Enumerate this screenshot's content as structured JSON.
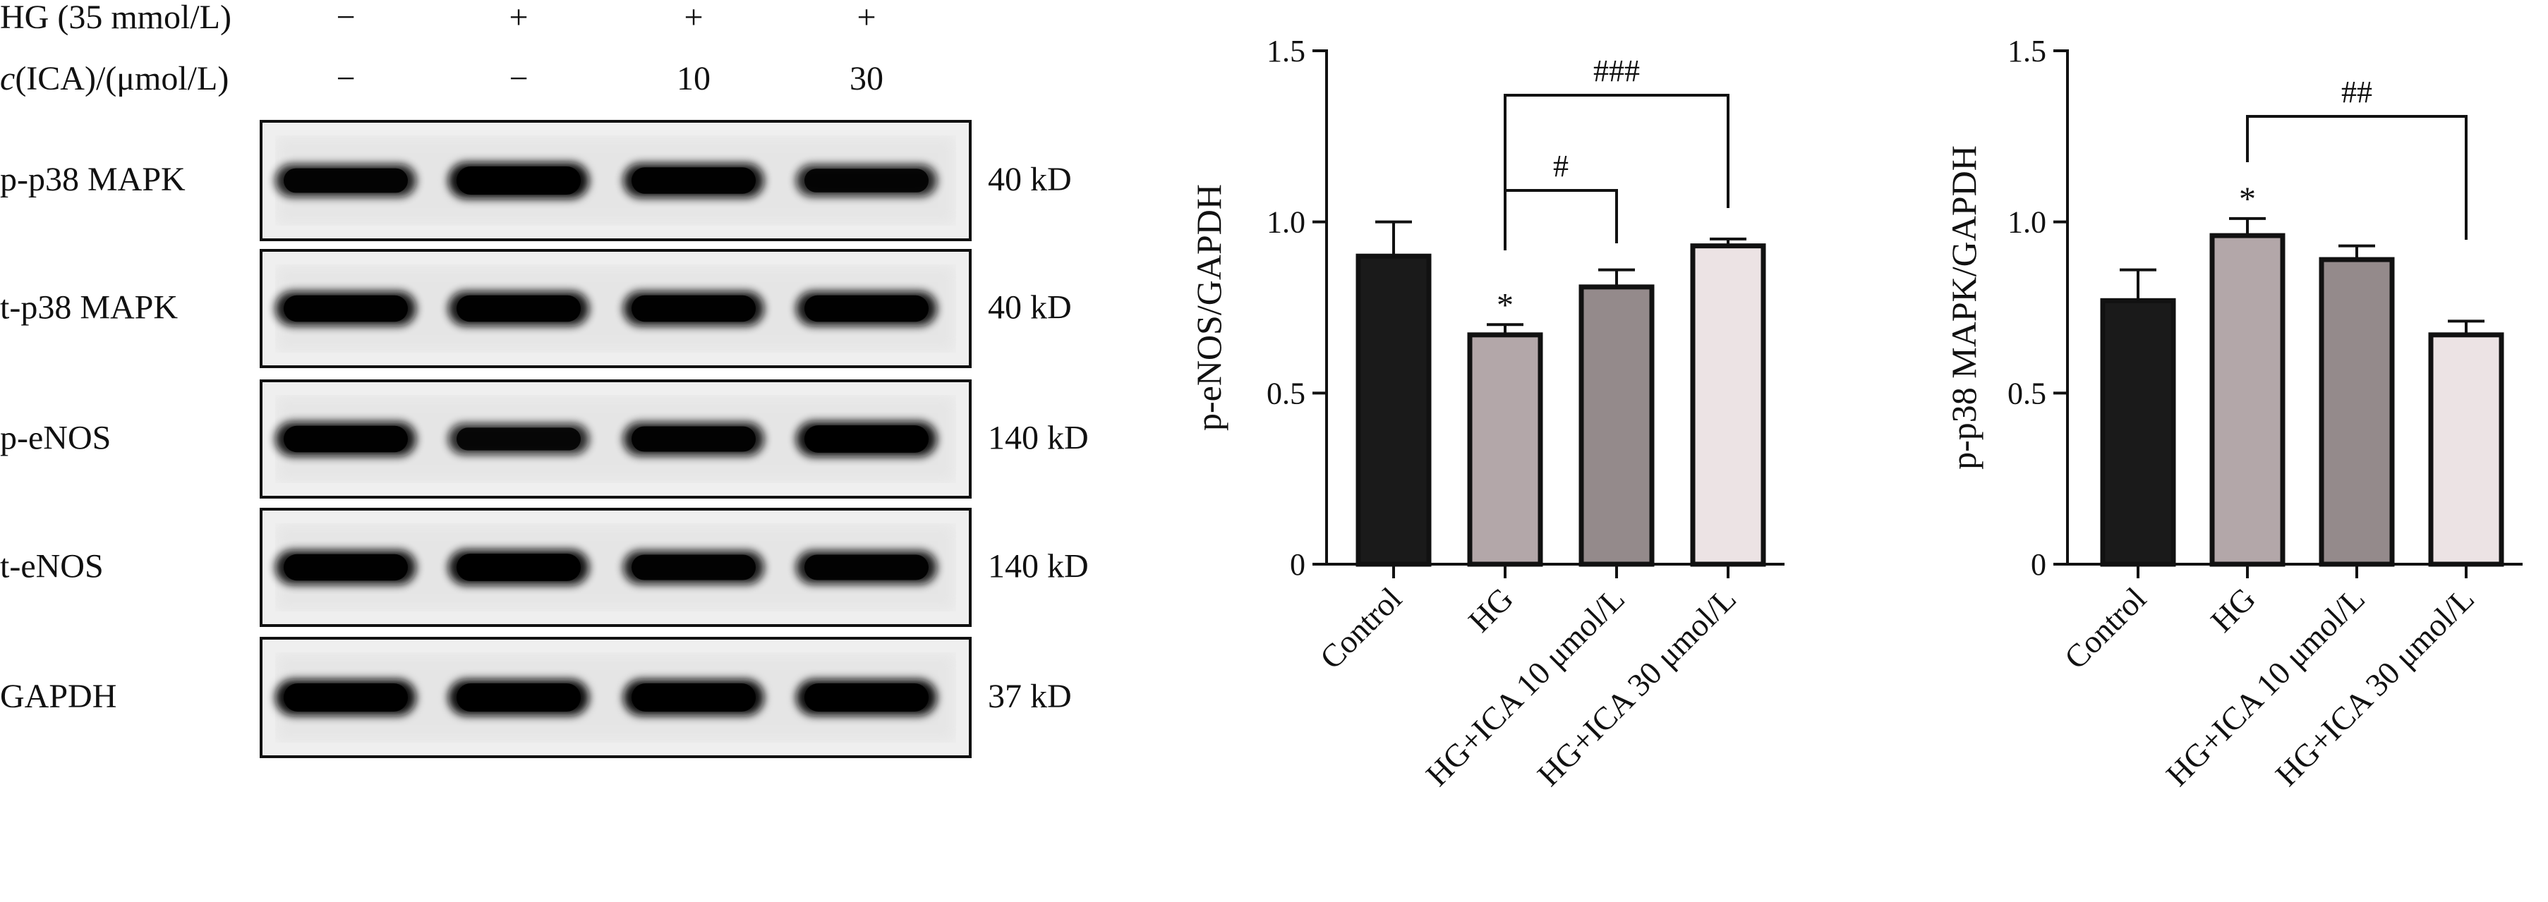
{
  "conditions": {
    "rows": [
      {
        "label": "HG (35 mmol/L)",
        "italic_prefix": "",
        "values": [
          "−",
          "+",
          "+",
          "+"
        ]
      },
      {
        "label": "(ICA)/(μmol/L)",
        "italic_prefix": "c",
        "values": [
          "−",
          "−",
          "10",
          "30"
        ]
      }
    ]
  },
  "blots": [
    {
      "label": "p-p38 MAPK",
      "size": "40 kD",
      "band_intensity": [
        0.8,
        1.0,
        0.9,
        0.75
      ]
    },
    {
      "label": "t-p38 MAPK",
      "size": "40 kD",
      "band_intensity": [
        0.9,
        0.9,
        0.9,
        0.9
      ]
    },
    {
      "label": "p-eNOS",
      "size": "140 kD",
      "band_intensity": [
        0.9,
        0.7,
        0.85,
        0.95
      ]
    },
    {
      "label": "t-eNOS",
      "size": "140 kD",
      "band_intensity": [
        0.9,
        0.95,
        0.85,
        0.85
      ]
    },
    {
      "label": "GAPDH",
      "size": "37 kD",
      "band_intensity": [
        1.0,
        1.0,
        1.0,
        1.0
      ]
    }
  ],
  "colors": {
    "control": "#1a1a1a",
    "hg": "#b3a7a9",
    "ica10": "#948a8b",
    "ica30": "#ece3e4",
    "axis": "#111111"
  },
  "chart_data": [
    {
      "type": "bar",
      "categories": [
        "Control",
        "HG",
        "HG+ICA 10 μmol/L",
        "HG+ICA 30 μmol/L"
      ],
      "values": [
        0.9,
        0.67,
        0.81,
        0.93
      ],
      "errors": [
        0.1,
        0.03,
        0.05,
        0.02
      ],
      "annotations": [
        "",
        "*",
        "",
        ""
      ],
      "ylabel": "p-eNOS/GAPDH",
      "ylim": [
        0,
        1.5
      ],
      "yticks": [
        "0",
        "0.5",
        "1.0",
        "1.5"
      ],
      "brackets": [
        {
          "from": 1,
          "to": 3,
          "label": "###"
        },
        {
          "from": 1,
          "to": 2,
          "label": "#"
        }
      ]
    },
    {
      "type": "bar",
      "categories": [
        "Control",
        "HG",
        "HG+ICA 10 μmol/L",
        "HG+ICA 30 μmol/L"
      ],
      "values": [
        0.77,
        0.96,
        0.89,
        0.67
      ],
      "errors": [
        0.09,
        0.05,
        0.04,
        0.04
      ],
      "annotations": [
        "",
        "*",
        "",
        ""
      ],
      "ylabel": "p-p38 MAPK/GAPDH",
      "ylim": [
        0,
        1.5
      ],
      "yticks": [
        "0",
        "0.5",
        "1.0",
        "1.5"
      ],
      "brackets": [
        {
          "from": 1,
          "to": 3,
          "label": "##"
        }
      ]
    }
  ]
}
